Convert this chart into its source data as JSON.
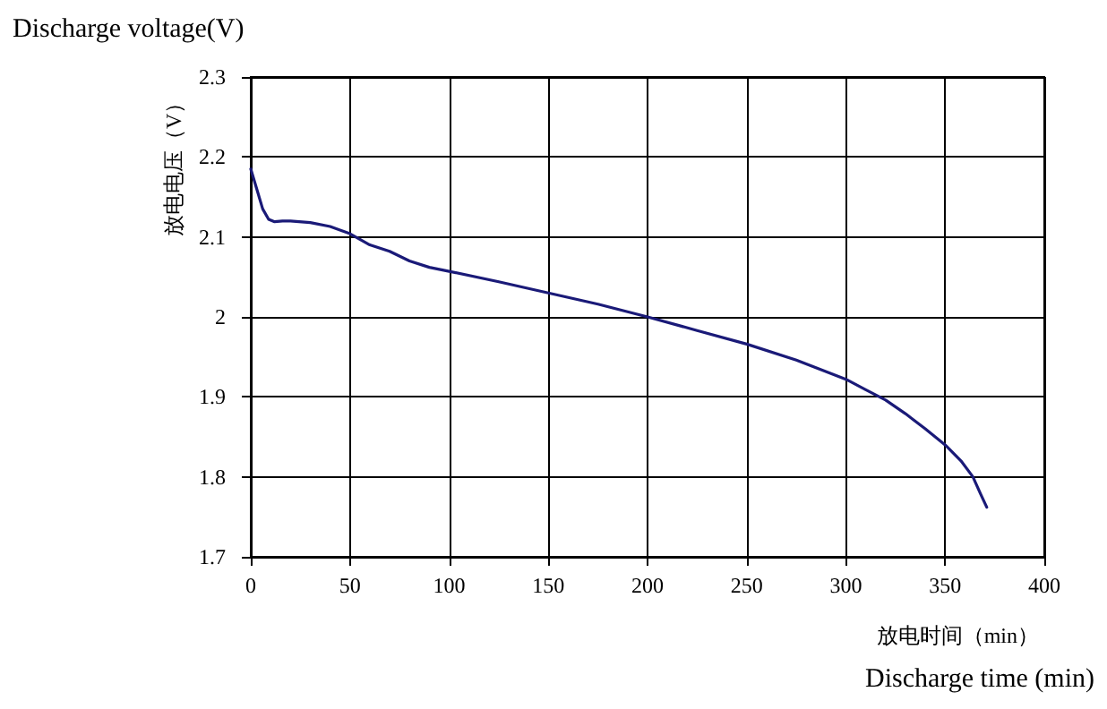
{
  "chart_data": {
    "type": "line",
    "title": "Discharge voltage(V)",
    "ylabel": "放电电压（V）",
    "xlabel": "放电时间（min）",
    "annotations": [
      "Discharge time (min)"
    ],
    "x": [
      0,
      3,
      6,
      9,
      12,
      16,
      20,
      30,
      40,
      50,
      55,
      60,
      70,
      80,
      90,
      100,
      125,
      150,
      175,
      200,
      225,
      250,
      275,
      300,
      310,
      320,
      330,
      340,
      350,
      358,
      364,
      368,
      371
    ],
    "series": [
      {
        "color": "#1a1a78",
        "values": [
          2.185,
          2.16,
          2.135,
          2.122,
          2.119,
          2.12,
          2.12,
          2.118,
          2.113,
          2.104,
          2.097,
          2.09,
          2.082,
          2.07,
          2.062,
          2.057,
          2.044,
          2.03,
          2.016,
          2.0,
          1.983,
          1.966,
          1.946,
          1.922,
          1.909,
          1.896,
          1.879,
          1.86,
          1.84,
          1.82,
          1.8,
          1.778,
          1.762
        ]
      }
    ],
    "xlim": [
      0,
      400
    ],
    "xticks": [
      0,
      50,
      100,
      150,
      200,
      250,
      300,
      350,
      400
    ],
    "ylim": [
      1.7,
      2.3
    ],
    "yticks": [
      1.7,
      1.8,
      1.9,
      2,
      2.1,
      2.2,
      2.3
    ],
    "grid": true,
    "marker": "none",
    "line_style": "solid"
  }
}
